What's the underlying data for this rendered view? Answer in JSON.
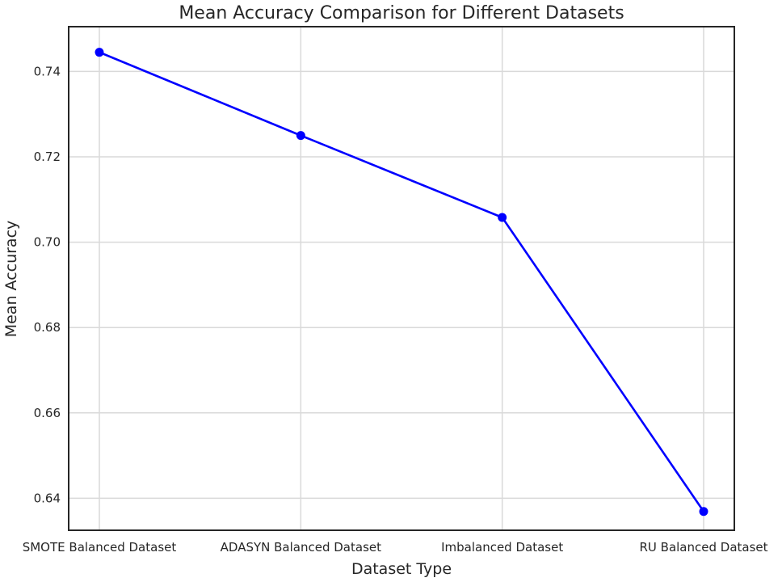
{
  "chart_data": {
    "type": "line",
    "title": "Mean Accuracy Comparison for Different Datasets",
    "xlabel": "Dataset Type",
    "ylabel": "Mean Accuracy",
    "categories": [
      "SMOTE Balanced Dataset",
      "ADASYN Balanced Dataset",
      "Imbalanced Dataset",
      "RU Balanced Dataset"
    ],
    "series": [
      {
        "values": [
          0.7445,
          0.725,
          0.7058,
          0.6369
        ],
        "color": "#0000ff",
        "marker": "circle"
      }
    ],
    "yticks": [
      "0.64",
      "0.66",
      "0.68",
      "0.70",
      "0.72",
      "0.74"
    ],
    "ylim": [
      0.6325,
      0.7505
    ],
    "grid": true,
    "legend": "none"
  }
}
